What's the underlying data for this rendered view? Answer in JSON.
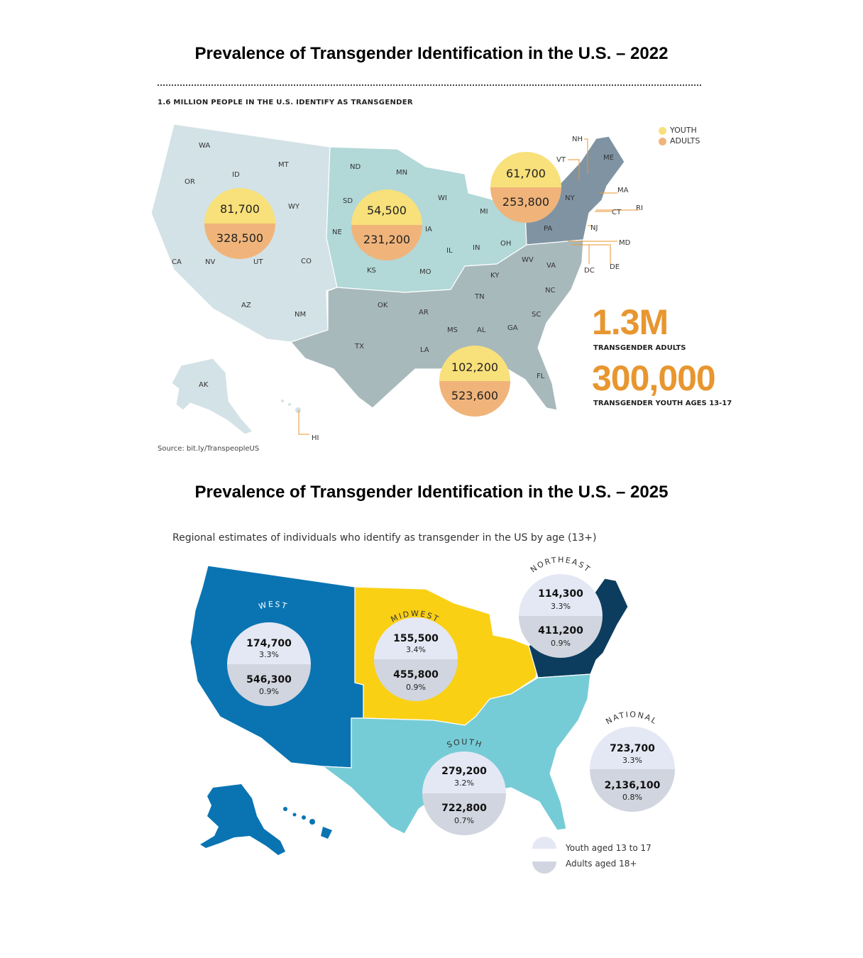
{
  "map2022": {
    "title": "Prevalence of Transgender Identification in the U.S. – 2022",
    "subhead": "1.6 MILLION PEOPLE IN THE U.S. IDENTIFY AS TRANSGENDER",
    "legend": {
      "youth": "YOUTH",
      "adults": "ADULTS"
    },
    "colors": {
      "youth": "#f8e07a",
      "adults": "#f0b47a",
      "west": "#d3e2e6",
      "midwest": "#b2d8d8",
      "south": "#a8b9bc",
      "northeast": "#7f93a3"
    },
    "bubbles": [
      {
        "region": "west",
        "youth": "81,700",
        "adults": "328,500"
      },
      {
        "region": "midwest",
        "youth": "54,500",
        "adults": "231,200"
      },
      {
        "region": "northeast",
        "youth": "61,700",
        "adults": "253,800"
      },
      {
        "region": "south",
        "youth": "102,200",
        "adults": "523,600"
      }
    ],
    "stats": [
      {
        "value": "1.3M",
        "label": "TRANSGENDER ADULTS"
      },
      {
        "value": "300,000",
        "label": "TRANSGENDER YOUTH AGES 13-17"
      }
    ],
    "state_labels": [
      "WA",
      "OR",
      "CA",
      "NV",
      "ID",
      "MT",
      "WY",
      "UT",
      "CO",
      "AZ",
      "NM",
      "AK",
      "HI",
      "ND",
      "SD",
      "NE",
      "KS",
      "MN",
      "IA",
      "MO",
      "WI",
      "IL",
      "IN",
      "MI",
      "OH",
      "OK",
      "TX",
      "AR",
      "LA",
      "MS",
      "AL",
      "TN",
      "KY",
      "GA",
      "FL",
      "SC",
      "NC",
      "VA",
      "WV",
      "PA",
      "NY",
      "VT",
      "NH",
      "ME",
      "MA",
      "RI",
      "CT",
      "NJ",
      "DE",
      "MD",
      "DC"
    ],
    "source": "Source: bit.ly/TranspeopleUS"
  },
  "map2025": {
    "title": "Prevalence of Transgender Identification in the U.S. – 2025",
    "subtitle": "Regional estimates of individuals who identify as transgender in the US by age (13+)",
    "colors": {
      "west": "#0a74b2",
      "midwest": "#fad015",
      "south": "#76ccd6",
      "northeast": "#0c3d5e",
      "youth": "#e4e8f4",
      "adults": "#d1d5df"
    },
    "regions": [
      {
        "name": "WEST",
        "youth": "174,700",
        "youth_pct": "3.3%",
        "adults": "546,300",
        "adults_pct": "0.9%"
      },
      {
        "name": "MIDWEST",
        "youth": "155,500",
        "youth_pct": "3.4%",
        "adults": "455,800",
        "adults_pct": "0.9%"
      },
      {
        "name": "NORTHEAST",
        "youth": "114,300",
        "youth_pct": "3.3%",
        "adults": "411,200",
        "adults_pct": "0.9%"
      },
      {
        "name": "SOUTH",
        "youth": "279,200",
        "youth_pct": "3.2%",
        "adults": "722,800",
        "adults_pct": "0.7%"
      },
      {
        "name": "NATIONAL",
        "youth": "723,700",
        "youth_pct": "3.3%",
        "adults": "2,136,100",
        "adults_pct": "0.8%"
      }
    ],
    "legend": {
      "youth": "Youth aged 13 to 17",
      "adults": "Adults aged 18+"
    }
  }
}
